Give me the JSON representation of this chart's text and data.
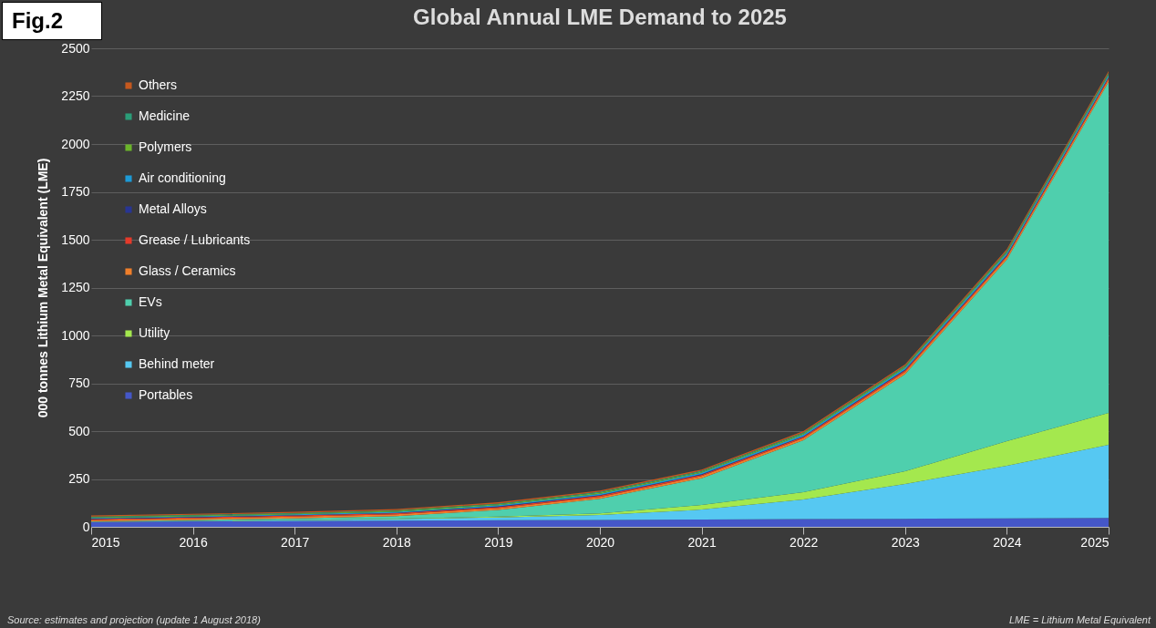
{
  "chart_data": {
    "type": "area",
    "title": "Global Annual LME Demand to 2025",
    "ylabel": "000 tonnes Lithium Metal Equivalent (LME)",
    "stacked": true,
    "x": [
      2015,
      2016,
      2017,
      2018,
      2019,
      2020,
      2021,
      2022,
      2023,
      2024,
      2025
    ],
    "xlim": [
      2015,
      2025
    ],
    "xticks": [
      2015,
      2016,
      2017,
      2018,
      2019,
      2020,
      2021,
      2022,
      2023,
      2024,
      2025
    ],
    "ylim": [
      0,
      2500
    ],
    "yticks": [
      0,
      250,
      500,
      750,
      1000,
      1250,
      1500,
      1750,
      2000,
      2250,
      2500
    ],
    "grid": "y",
    "legend": "top left",
    "annotations": [
      "Fig.2",
      "Source:  estimates and projection (update 1 August 2018)",
      "LME = Lithium Metal Equivalent"
    ],
    "series": [
      {
        "name": "Portables",
        "color": "#4557c8",
        "values": [
          25,
          28,
          30,
          32,
          34,
          36,
          38,
          40,
          42,
          44,
          46
        ]
      },
      {
        "name": "Behind meter",
        "color": "#56c8f2",
        "values": [
          1,
          2,
          4,
          8,
          15,
          26,
          52,
          103,
          182,
          275,
          383
        ]
      },
      {
        "name": "Utility",
        "color": "#a4e84e",
        "values": [
          1,
          1,
          2,
          3,
          5,
          8,
          24,
          38,
          66,
          129,
          166
        ]
      },
      {
        "name": "EVs",
        "color": "#4fcfad",
        "values": [
          1,
          5,
          8,
          13,
          34,
          76,
          140,
          271,
          508,
          949,
          1730
        ]
      },
      {
        "name": "Glass / Ceramics",
        "color": "#f07f2a",
        "values": [
          8,
          8,
          9,
          9,
          10,
          10,
          11,
          11,
          12,
          12,
          13
        ]
      },
      {
        "name": "Grease / Lubricants",
        "color": "#e53a2a",
        "values": [
          5,
          5,
          6,
          6,
          6,
          7,
          7,
          7,
          8,
          8,
          8
        ]
      },
      {
        "name": "Metal Alloys",
        "color": "#283593",
        "values": [
          2,
          2,
          2,
          2,
          3,
          3,
          3,
          3,
          3,
          3,
          3
        ]
      },
      {
        "name": "Air conditioning",
        "color": "#1d9ad6",
        "values": [
          3,
          4,
          4,
          5,
          6,
          7,
          8,
          9,
          10,
          11,
          12
        ]
      },
      {
        "name": "Polymers",
        "color": "#6bb52a",
        "values": [
          4,
          4,
          4,
          5,
          5,
          5,
          5,
          6,
          6,
          6,
          6
        ]
      },
      {
        "name": "Medicine",
        "color": "#2a9d78",
        "values": [
          4,
          4,
          4,
          4,
          4,
          5,
          5,
          5,
          5,
          6,
          6
        ]
      },
      {
        "name": "Others",
        "color": "#c5581e",
        "values": [
          5,
          5,
          5,
          6,
          6,
          6,
          6,
          7,
          7,
          8,
          8
        ]
      }
    ]
  }
}
